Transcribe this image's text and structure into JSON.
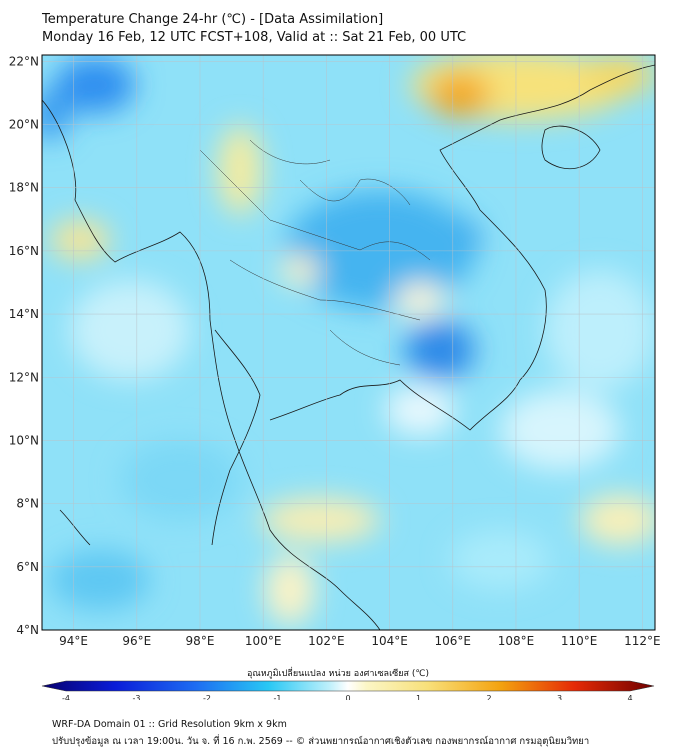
{
  "header": {
    "title_line1": "Temperature Change 24-hr (℃) - [Data Assimilation]",
    "title_line2": "Monday 16 Feb, 12 UTC FCST+108, Valid at :: Sat 21 Feb, 00 UTC"
  },
  "map": {
    "lon_labels": [
      "94°E",
      "96°E",
      "98°E",
      "100°E",
      "102°E",
      "104°E",
      "106°E",
      "108°E",
      "110°E",
      "112°E"
    ],
    "lat_labels": [
      "22°N",
      "20°N",
      "18°N",
      "16°N",
      "14°N",
      "12°N",
      "10°N",
      "8°N",
      "6°N",
      "4°N"
    ],
    "lon_values": [
      94,
      96,
      98,
      100,
      102,
      104,
      106,
      108,
      110,
      112
    ],
    "lat_values": [
      22,
      20,
      18,
      16,
      14,
      12,
      10,
      8,
      6,
      4
    ],
    "lon_range": [
      93,
      112.4
    ],
    "lat_range": [
      4,
      22.2
    ]
  },
  "colorbar": {
    "title": "อุณหภูมิเปลี่ยนแปลง หน่วย องศาเซลเซียส (℃)",
    "ticks": [
      "-4",
      "-3",
      "-2",
      "-1",
      "0",
      "1",
      "2",
      "3",
      "4"
    ],
    "tick_values": [
      -4,
      -3,
      -2,
      -1,
      0,
      1,
      2,
      3,
      4
    ],
    "range": [
      -4,
      4
    ]
  },
  "footer": {
    "line1": "WRF-DA Domain 01 :: Grid Resolution 9km x 9km",
    "line2": "ปรับปรุงข้อมูล ณ เวลา 19:00น. วัน จ. ที่ 16 ก.พ. 2569 -- © ส่วนพยากรณ์อากาศเชิงตัวเลข กองพยากรณ์อากาศ กรมอุตุนิยมวิทยา"
  }
}
